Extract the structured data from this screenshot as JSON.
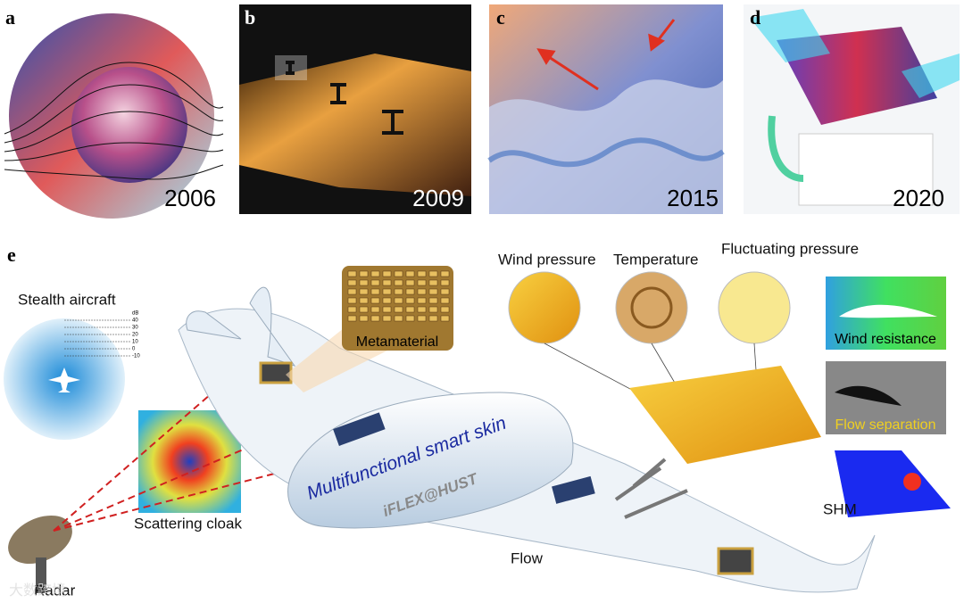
{
  "panels": [
    {
      "label": "a",
      "year": "2006"
    },
    {
      "label": "b",
      "year": "2009"
    },
    {
      "label": "c",
      "year": "2015"
    },
    {
      "label": "d",
      "year": "2020"
    }
  ],
  "main": {
    "label": "e",
    "stealth": {
      "title": "Stealth aircraft",
      "scale_unit": "dB",
      "scale": [
        "40",
        "30",
        "20",
        "10",
        "0",
        "-10"
      ]
    },
    "metamaterial": "Metamaterial",
    "sensors": [
      "Wind pressure",
      "Temperature",
      "Fluctuating pressure"
    ],
    "flow_panels": [
      "Wind resistance",
      "Flow separation",
      "SHM"
    ],
    "skin_title": "Multifunctional smart skin",
    "credit": "iFLEX@HUST",
    "cloak": "Scattering cloak",
    "flow": "Flow",
    "radar": "Radar",
    "watermark": "大数跨境"
  }
}
